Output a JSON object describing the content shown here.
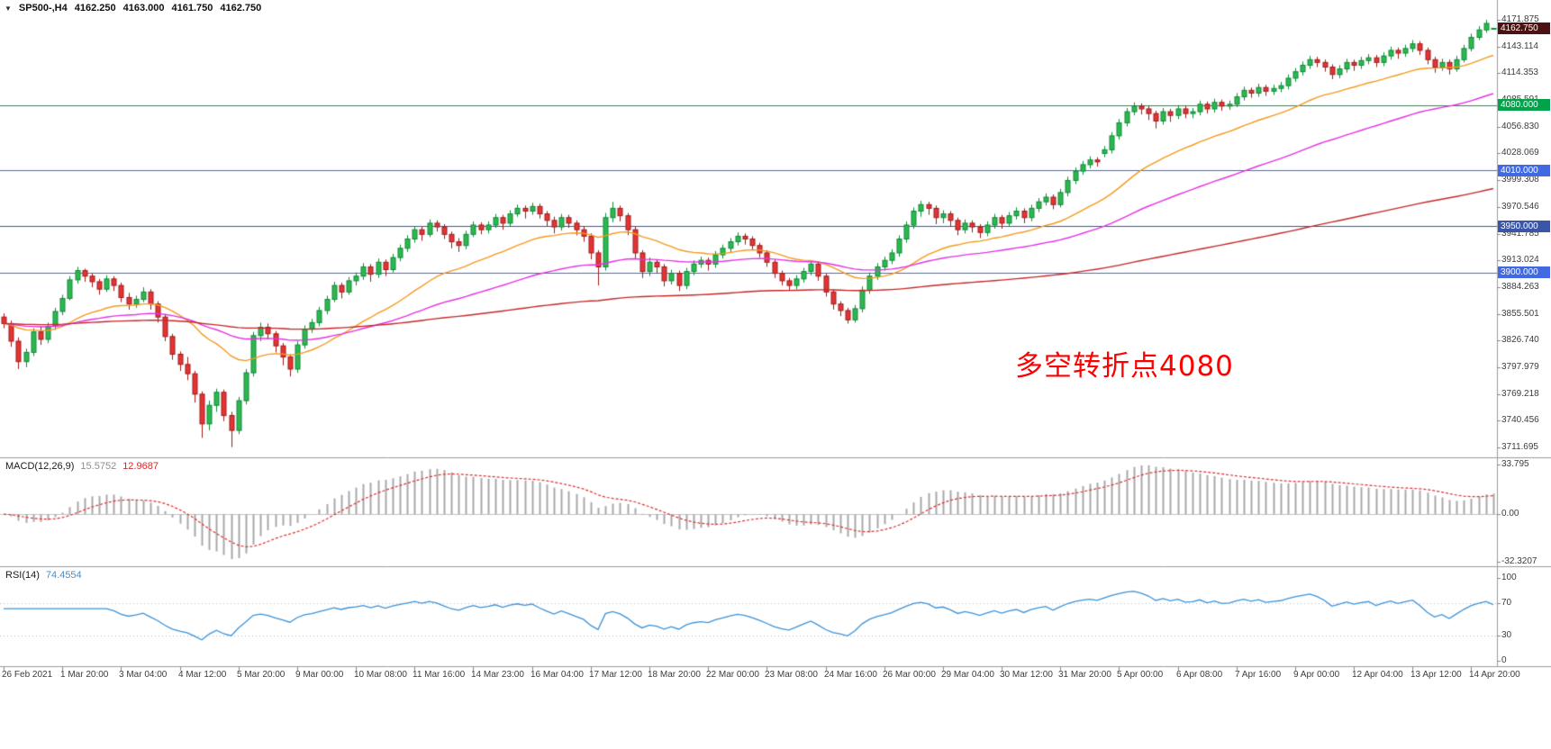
{
  "quote": {
    "symbol_tf": "SP500-,H4",
    "open": "4162.250",
    "high": "4163.000",
    "low": "4161.750",
    "close": "4162.750"
  },
  "annotation": {
    "text": "多空转折点4080",
    "color": "#ff0000"
  },
  "colors": {
    "up_fill": "#2db84e",
    "up_edge": "#0e8a3a",
    "down_fill": "#e43434",
    "down_edge": "#9e1c1c",
    "hist": "#a8a8a8",
    "signal": "#d93030",
    "rsi": "#3d93d8",
    "zero_line": "#c4c4c4",
    "separator": "#9c9c9c",
    "rsi_level": "#b9b9c9"
  },
  "levels": [
    {
      "price": 4080,
      "label": "4080.000",
      "color": "#00a24a"
    },
    {
      "price": 4010,
      "label": "4010.000",
      "color": "#4169e1"
    },
    {
      "price": 3950,
      "label": "3950.000",
      "color": "#3b55a8"
    },
    {
      "price": 3900,
      "label": "3900.000",
      "color": "#4169e1"
    }
  ],
  "current_price": {
    "value": 4162.75,
    "label": "4162.750",
    "box_color": "#4a1212"
  },
  "indicators": {
    "macd": {
      "label": "MACD(12,26,9)",
      "value_main": "15.5752",
      "value_signal": "12.9687",
      "range": {
        "max": 33.795,
        "min": -32.3207
      },
      "axis_labels": {
        "top": "33.795",
        "zero": "0.00",
        "bottom": "-32.3207"
      }
    },
    "rsi": {
      "label": "RSI(14)",
      "value": "74.4554",
      "levels": [
        70,
        30
      ],
      "axis_labels": [
        "100",
        "70",
        "30",
        "0"
      ],
      "range": [
        0,
        100
      ]
    }
  },
  "axes": {
    "price_labels": [
      "4171.875",
      "4143.114",
      "4114.353",
      "4085.591",
      "4056.830",
      "4028.069",
      "3999.308",
      "3970.546",
      "3941.785",
      "3913.024",
      "3884.263",
      "3855.501",
      "3826.740",
      "3797.979",
      "3769.218",
      "3740.456",
      "3711.695"
    ],
    "time_labels": [
      "26 Feb 2021",
      "1 Mar 20:00",
      "3 Mar 04:00",
      "4 Mar 12:00",
      "5 Mar 20:00",
      "9 Mar 00:00",
      "10 Mar 08:00",
      "11 Mar 16:00",
      "14 Mar 23:00",
      "16 Mar 04:00",
      "17 Mar 12:00",
      "18 Mar 20:00",
      "22 Mar 00:00",
      "23 Mar 08:00",
      "24 Mar 16:00",
      "26 Mar 00:00",
      "29 Mar 04:00",
      "30 Mar 12:00",
      "31 Mar 20:00",
      "5 Apr 00:00",
      "6 Apr 08:00",
      "7 Apr 16:00",
      "9 Apr 00:00",
      "12 Apr 04:00",
      "13 Apr 12:00",
      "14 Apr 20:00"
    ]
  },
  "chart_data": {
    "type": "candlestick",
    "symbol": "SP500-",
    "timeframe": "H4",
    "title": "SP500-,H4",
    "price_axis": {
      "top": 4171.875,
      "bottom": 3711.695
    },
    "x_tick_step": 8,
    "moving_averages": [
      {
        "period": 24,
        "color": "#f59a1c"
      },
      {
        "period": 60,
        "color": "#e532e5"
      },
      {
        "period": 200,
        "color": "#c62828"
      }
    ],
    "x_labels": [
      "26 Feb 2021",
      "1 Mar 20:00",
      "3 Mar 04:00",
      "4 Mar 12:00",
      "5 Mar 20:00",
      "9 Mar 00:00",
      "10 Mar 08:00",
      "11 Mar 16:00",
      "14 Mar 23:00",
      "16 Mar 04:00",
      "17 Mar 12:00",
      "18 Mar 20:00",
      "22 Mar 00:00",
      "23 Mar 08:00",
      "24 Mar 16:00",
      "26 Mar 00:00",
      "29 Mar 04:00",
      "30 Mar 12:00",
      "31 Mar 20:00",
      "5 Apr 00:00",
      "6 Apr 08:00",
      "7 Apr 16:00",
      "9 Apr 00:00",
      "12 Apr 04:00",
      "13 Apr 12:00",
      "14 Apr 20:00"
    ],
    "candles": [
      [
        3852,
        3856,
        3840,
        3845
      ],
      [
        3845,
        3848,
        3820,
        3826
      ],
      [
        3826,
        3830,
        3796,
        3804
      ],
      [
        3804,
        3818,
        3798,
        3814
      ],
      [
        3814,
        3840,
        3810,
        3836
      ],
      [
        3836,
        3842,
        3822,
        3828
      ],
      [
        3828,
        3846,
        3824,
        3842
      ],
      [
        3842,
        3862,
        3838,
        3858
      ],
      [
        3858,
        3876,
        3854,
        3872
      ],
      [
        3872,
        3896,
        3870,
        3892
      ],
      [
        3892,
        3906,
        3888,
        3902
      ],
      [
        3902,
        3904,
        3890,
        3896
      ],
      [
        3896,
        3899,
        3884,
        3890
      ],
      [
        3890,
        3893,
        3876,
        3882
      ],
      [
        3882,
        3897,
        3879,
        3893
      ],
      [
        3893,
        3896,
        3880,
        3886
      ],
      [
        3886,
        3889,
        3868,
        3873
      ],
      [
        3873,
        3878,
        3860,
        3866
      ],
      [
        3866,
        3875,
        3862,
        3871
      ],
      [
        3871,
        3884,
        3868,
        3879
      ],
      [
        3879,
        3882,
        3860,
        3866
      ],
      [
        3866,
        3869,
        3846,
        3852
      ],
      [
        3852,
        3855,
        3826,
        3831
      ],
      [
        3831,
        3834,
        3806,
        3812
      ],
      [
        3812,
        3815,
        3794,
        3801
      ],
      [
        3801,
        3809,
        3784,
        3791
      ],
      [
        3791,
        3794,
        3760,
        3769
      ],
      [
        3769,
        3772,
        3722,
        3737
      ],
      [
        3737,
        3762,
        3730,
        3757
      ],
      [
        3757,
        3775,
        3750,
        3771
      ],
      [
        3771,
        3774,
        3740,
        3746
      ],
      [
        3746,
        3750,
        3712,
        3730
      ],
      [
        3730,
        3766,
        3726,
        3762
      ],
      [
        3762,
        3796,
        3758,
        3792
      ],
      [
        3792,
        3836,
        3788,
        3832
      ],
      [
        3832,
        3846,
        3826,
        3841
      ],
      [
        3841,
        3845,
        3828,
        3834
      ],
      [
        3834,
        3837,
        3814,
        3821
      ],
      [
        3821,
        3824,
        3800,
        3809
      ],
      [
        3809,
        3812,
        3788,
        3796
      ],
      [
        3796,
        3826,
        3792,
        3822
      ],
      [
        3822,
        3843,
        3818,
        3839
      ],
      [
        3839,
        3850,
        3835,
        3846
      ],
      [
        3846,
        3863,
        3842,
        3859
      ],
      [
        3859,
        3875,
        3855,
        3871
      ],
      [
        3871,
        3890,
        3868,
        3886
      ],
      [
        3886,
        3889,
        3872,
        3879
      ],
      [
        3879,
        3895,
        3876,
        3891
      ],
      [
        3891,
        3900,
        3886,
        3896
      ],
      [
        3896,
        3910,
        3892,
        3906
      ],
      [
        3906,
        3909,
        3890,
        3898
      ],
      [
        3898,
        3915,
        3894,
        3911
      ],
      [
        3911,
        3914,
        3896,
        3903
      ],
      [
        3903,
        3920,
        3900,
        3916
      ],
      [
        3916,
        3930,
        3912,
        3926
      ],
      [
        3926,
        3940,
        3922,
        3936
      ],
      [
        3936,
        3950,
        3932,
        3946
      ],
      [
        3946,
        3949,
        3934,
        3941
      ],
      [
        3941,
        3957,
        3938,
        3953
      ],
      [
        3953,
        3956,
        3944,
        3949
      ],
      [
        3949,
        3952,
        3936,
        3941
      ],
      [
        3941,
        3944,
        3926,
        3933
      ],
      [
        3933,
        3937,
        3922,
        3929
      ],
      [
        3929,
        3945,
        3925,
        3941
      ],
      [
        3941,
        3955,
        3938,
        3951
      ],
      [
        3951,
        3954,
        3941,
        3946
      ],
      [
        3946,
        3955,
        3942,
        3951
      ],
      [
        3951,
        3963,
        3948,
        3959
      ],
      [
        3959,
        3962,
        3946,
        3953
      ],
      [
        3953,
        3967,
        3950,
        3963
      ],
      [
        3963,
        3973,
        3960,
        3969
      ],
      [
        3969,
        3972,
        3958,
        3966
      ],
      [
        3966,
        3975,
        3962,
        3971
      ],
      [
        3971,
        3974,
        3958,
        3963
      ],
      [
        3963,
        3966,
        3950,
        3956
      ],
      [
        3956,
        3960,
        3942,
        3949
      ],
      [
        3949,
        3963,
        3945,
        3959
      ],
      [
        3959,
        3962,
        3948,
        3953
      ],
      [
        3953,
        3956,
        3940,
        3946
      ],
      [
        3946,
        3950,
        3933,
        3939
      ],
      [
        3939,
        3942,
        3914,
        3921
      ],
      [
        3921,
        3924,
        3886,
        3906
      ],
      [
        3906,
        3964,
        3902,
        3959
      ],
      [
        3959,
        3976,
        3954,
        3969
      ],
      [
        3969,
        3972,
        3955,
        3961
      ],
      [
        3961,
        3964,
        3940,
        3946
      ],
      [
        3946,
        3949,
        3915,
        3921
      ],
      [
        3921,
        3924,
        3894,
        3901
      ],
      [
        3901,
        3916,
        3896,
        3911
      ],
      [
        3911,
        3914,
        3899,
        3906
      ],
      [
        3906,
        3909,
        3885,
        3891
      ],
      [
        3891,
        3903,
        3887,
        3899
      ],
      [
        3899,
        3902,
        3880,
        3886
      ],
      [
        3886,
        3905,
        3882,
        3901
      ],
      [
        3901,
        3913,
        3897,
        3909
      ],
      [
        3909,
        3917,
        3905,
        3913
      ],
      [
        3913,
        3916,
        3902,
        3909
      ],
      [
        3909,
        3923,
        3905,
        3919
      ],
      [
        3919,
        3930,
        3915,
        3926
      ],
      [
        3926,
        3937,
        3922,
        3933
      ],
      [
        3933,
        3943,
        3929,
        3939
      ],
      [
        3939,
        3942,
        3930,
        3936
      ],
      [
        3936,
        3939,
        3924,
        3929
      ],
      [
        3929,
        3932,
        3916,
        3921
      ],
      [
        3921,
        3924,
        3906,
        3911
      ],
      [
        3911,
        3914,
        3894,
        3899
      ],
      [
        3899,
        3902,
        3886,
        3891
      ],
      [
        3891,
        3894,
        3880,
        3886
      ],
      [
        3886,
        3897,
        3882,
        3893
      ],
      [
        3893,
        3905,
        3889,
        3901
      ],
      [
        3901,
        3913,
        3897,
        3909
      ],
      [
        3909,
        3912,
        3891,
        3896
      ],
      [
        3896,
        3899,
        3874,
        3879
      ],
      [
        3879,
        3882,
        3860,
        3866
      ],
      [
        3866,
        3869,
        3853,
        3859
      ],
      [
        3859,
        3862,
        3845,
        3849
      ],
      [
        3849,
        3865,
        3846,
        3861
      ],
      [
        3861,
        3885,
        3857,
        3881
      ],
      [
        3881,
        3900,
        3877,
        3896
      ],
      [
        3896,
        3910,
        3892,
        3906
      ],
      [
        3906,
        3917,
        3902,
        3913
      ],
      [
        3913,
        3925,
        3909,
        3921
      ],
      [
        3921,
        3940,
        3917,
        3936
      ],
      [
        3936,
        3955,
        3932,
        3951
      ],
      [
        3951,
        3970,
        3947,
        3966
      ],
      [
        3966,
        3977,
        3960,
        3973
      ],
      [
        3973,
        3976,
        3962,
        3969
      ],
      [
        3969,
        3972,
        3952,
        3959
      ],
      [
        3959,
        3967,
        3953,
        3963
      ],
      [
        3963,
        3966,
        3949,
        3956
      ],
      [
        3956,
        3959,
        3940,
        3946
      ],
      [
        3946,
        3957,
        3942,
        3953
      ],
      [
        3953,
        3956,
        3943,
        3949
      ],
      [
        3949,
        3952,
        3937,
        3943
      ],
      [
        3943,
        3955,
        3939,
        3951
      ],
      [
        3951,
        3963,
        3947,
        3959
      ],
      [
        3959,
        3962,
        3947,
        3953
      ],
      [
        3953,
        3965,
        3949,
        3961
      ],
      [
        3961,
        3970,
        3957,
        3966
      ],
      [
        3966,
        3969,
        3953,
        3959
      ],
      [
        3959,
        3973,
        3955,
        3969
      ],
      [
        3969,
        3980,
        3965,
        3976
      ],
      [
        3976,
        3985,
        3972,
        3981
      ],
      [
        3981,
        3984,
        3968,
        3973
      ],
      [
        3973,
        3990,
        3970,
        3986
      ],
      [
        3986,
        4003,
        3982,
        3999
      ],
      [
        3999,
        4013,
        3995,
        4009
      ],
      [
        4009,
        4020,
        4005,
        4016
      ],
      [
        4016,
        4025,
        4012,
        4021
      ],
      [
        4021,
        4024,
        4014,
        4019
      ],
      [
        4028,
        4036,
        4024,
        4032
      ],
      [
        4032,
        4051,
        4028,
        4047
      ],
      [
        4047,
        4065,
        4043,
        4061
      ],
      [
        4061,
        4077,
        4057,
        4073
      ],
      [
        4073,
        4083,
        4069,
        4079
      ],
      [
        4079,
        4082,
        4070,
        4076
      ],
      [
        4076,
        4079,
        4064,
        4071
      ],
      [
        4071,
        4074,
        4055,
        4063
      ],
      [
        4063,
        4077,
        4059,
        4073
      ],
      [
        4073,
        4076,
        4062,
        4069
      ],
      [
        4069,
        4080,
        4065,
        4076
      ],
      [
        4076,
        4079,
        4066,
        4071
      ],
      [
        4071,
        4077,
        4066,
        4073
      ],
      [
        4073,
        4085,
        4069,
        4081
      ],
      [
        4081,
        4084,
        4071,
        4076
      ],
      [
        4076,
        4087,
        4072,
        4083
      ],
      [
        4083,
        4086,
        4074,
        4079
      ],
      [
        4079,
        4085,
        4075,
        4081
      ],
      [
        4081,
        4093,
        4078,
        4089
      ],
      [
        4089,
        4100,
        4085,
        4096
      ],
      [
        4096,
        4099,
        4088,
        4093
      ],
      [
        4093,
        4103,
        4089,
        4099
      ],
      [
        4099,
        4102,
        4090,
        4095
      ],
      [
        4095,
        4102,
        4091,
        4098
      ],
      [
        4098,
        4105,
        4094,
        4101
      ],
      [
        4101,
        4113,
        4097,
        4109
      ],
      [
        4109,
        4120,
        4105,
        4116
      ],
      [
        4116,
        4127,
        4112,
        4123
      ],
      [
        4123,
        4133,
        4119,
        4129
      ],
      [
        4129,
        4132,
        4121,
        4126
      ],
      [
        4126,
        4129,
        4116,
        4121
      ],
      [
        4121,
        4124,
        4108,
        4113
      ],
      [
        4113,
        4123,
        4109,
        4119
      ],
      [
        4119,
        4130,
        4115,
        4126
      ],
      [
        4126,
        4129,
        4117,
        4123
      ],
      [
        4123,
        4132,
        4119,
        4128
      ],
      [
        4128,
        4135,
        4124,
        4131
      ],
      [
        4131,
        4134,
        4121,
        4126
      ],
      [
        4126,
        4137,
        4122,
        4133
      ],
      [
        4133,
        4143,
        4129,
        4139
      ],
      [
        4139,
        4142,
        4130,
        4136
      ],
      [
        4136,
        4145,
        4132,
        4141
      ],
      [
        4141,
        4150,
        4137,
        4146
      ],
      [
        4146,
        4149,
        4134,
        4139
      ],
      [
        4139,
        4142,
        4124,
        4129
      ],
      [
        4129,
        4132,
        4115,
        4121
      ],
      [
        4121,
        4130,
        4117,
        4126
      ],
      [
        4126,
        4129,
        4113,
        4119
      ],
      [
        4119,
        4133,
        4116,
        4129
      ],
      [
        4129,
        4145,
        4126,
        4141
      ],
      [
        4141,
        4157,
        4138,
        4153
      ],
      [
        4153,
        4165,
        4150,
        4161
      ],
      [
        4161,
        4171.9,
        4158,
        4168
      ],
      [
        4162.25,
        4163,
        4161.75,
        4162.75
      ]
    ]
  }
}
